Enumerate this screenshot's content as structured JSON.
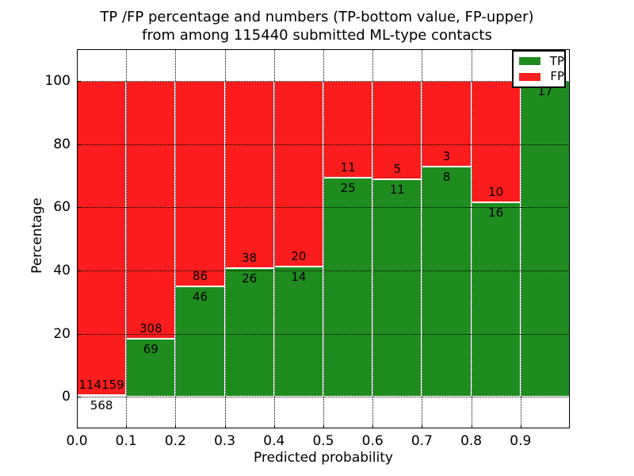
{
  "chart_data": {
    "type": "bar",
    "stacked": true,
    "title_line1": "TP /FP percentage and numbers (TP-bottom value, FP-upper)",
    "title_line2": "from among 115440 submitted ML-type contacts",
    "xlabel": "Predicted probability",
    "ylabel": "Percentage",
    "xlim": [
      0.0,
      1.0
    ],
    "ylim": [
      -10,
      110
    ],
    "x_tick_labels": [
      "0.0",
      "0.1",
      "0.2",
      "0.3",
      "0.4",
      "0.5",
      "0.6",
      "0.7",
      "0.8",
      "0.9"
    ],
    "x_tick_values": [
      0.0,
      0.1,
      0.2,
      0.3,
      0.4,
      0.5,
      0.6,
      0.7,
      0.8,
      0.9
    ],
    "y_tick_labels": [
      "0",
      "20",
      "40",
      "60",
      "80",
      "100"
    ],
    "y_tick_values": [
      0,
      20,
      40,
      60,
      80,
      100
    ],
    "grid": "dotted",
    "colors": {
      "tp": "#1f8c1f",
      "fp": "#fb1d1d"
    },
    "legend": {
      "position": "upper right",
      "entries": [
        {
          "label": "TP",
          "color": "#1f8c1f"
        },
        {
          "label": "FP",
          "color": "#fb1d1d"
        }
      ]
    },
    "bins": [
      {
        "x_start": 0.0,
        "x_end": 0.1,
        "tp": 568,
        "fp": 114159,
        "tp_label": "568",
        "fp_label": "114159"
      },
      {
        "x_start": 0.1,
        "x_end": 0.2,
        "tp": 69,
        "fp": 308,
        "tp_label": "69",
        "fp_label": "308"
      },
      {
        "x_start": 0.2,
        "x_end": 0.3,
        "tp": 46,
        "fp": 86,
        "tp_label": "46",
        "fp_label": "86"
      },
      {
        "x_start": 0.3,
        "x_end": 0.4,
        "tp": 26,
        "fp": 38,
        "tp_label": "26",
        "fp_label": "38"
      },
      {
        "x_start": 0.4,
        "x_end": 0.5,
        "tp": 14,
        "fp": 20,
        "tp_label": "14",
        "fp_label": "20"
      },
      {
        "x_start": 0.5,
        "x_end": 0.6,
        "tp": 25,
        "fp": 11,
        "tp_label": "25",
        "fp_label": "11"
      },
      {
        "x_start": 0.6,
        "x_end": 0.7,
        "tp": 11,
        "fp": 5,
        "tp_label": "11",
        "fp_label": "5"
      },
      {
        "x_start": 0.7,
        "x_end": 0.8,
        "tp": 8,
        "fp": 3,
        "tp_label": "8",
        "fp_label": "3"
      },
      {
        "x_start": 0.8,
        "x_end": 0.9,
        "tp": 16,
        "fp": 10,
        "tp_label": "16",
        "fp_label": "10"
      },
      {
        "x_start": 0.9,
        "x_end": 1.0,
        "tp": 17,
        "fp": 0,
        "tp_label": "17",
        "fp_label": null
      }
    ]
  }
}
